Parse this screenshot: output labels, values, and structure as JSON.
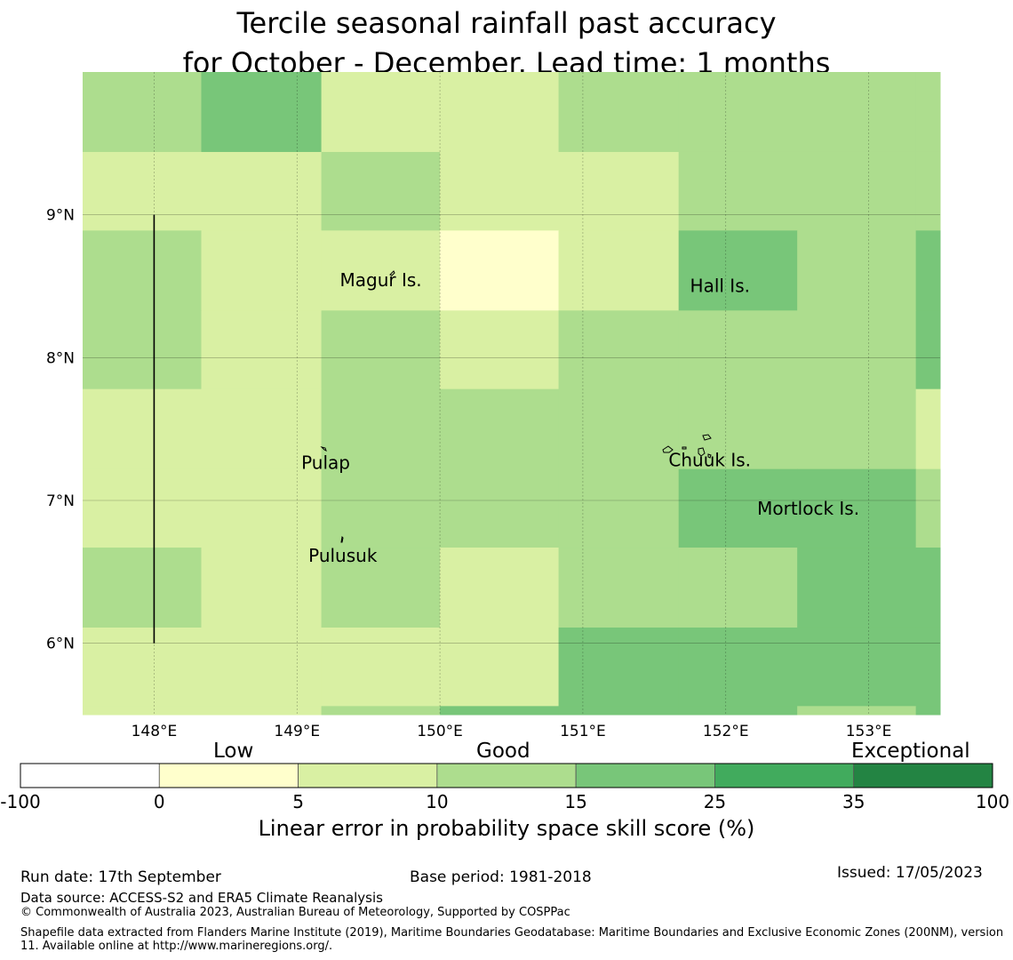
{
  "title": {
    "line1": "Tercile seasonal rainfall past accuracy",
    "line2": "for October - December. Lead time: 1 months"
  },
  "map": {
    "lon_range": [
      147.5,
      153.5
    ],
    "lat_range": [
      5.5,
      10.0
    ],
    "lon_ticks": [
      "148°E",
      "149°E",
      "150°E",
      "151°E",
      "152°E",
      "153°E"
    ],
    "lat_ticks": [
      "9°N",
      "8°N",
      "7°N",
      "6°N"
    ],
    "grid": true,
    "colors": [
      "#ffffff",
      "#ffffcc",
      "#d9f0a3",
      "#addd8e",
      "#78c679",
      "#41ab5d",
      "#238443"
    ],
    "cell_lon_edges": [
      147.5,
      148.33,
      149.17,
      150.0,
      150.83,
      151.67,
      152.5,
      153.33,
      153.5
    ],
    "cell_lat_edges": [
      10.0,
      9.44,
      8.89,
      8.33,
      7.78,
      7.22,
      6.67,
      6.11,
      5.56,
      5.5
    ],
    "cell_bins": [
      [
        3,
        4,
        2,
        2,
        3,
        3,
        3,
        3
      ],
      [
        2,
        2,
        3,
        2,
        2,
        3,
        3,
        3
      ],
      [
        3,
        2,
        2,
        1,
        2,
        4,
        3,
        4
      ],
      [
        3,
        2,
        3,
        2,
        3,
        3,
        3,
        4
      ],
      [
        2,
        2,
        3,
        3,
        3,
        3,
        3,
        2
      ],
      [
        2,
        2,
        3,
        3,
        3,
        4,
        4,
        3
      ],
      [
        3,
        2,
        3,
        2,
        3,
        3,
        4,
        4
      ],
      [
        2,
        2,
        2,
        2,
        4,
        4,
        4,
        4
      ],
      [
        2,
        2,
        3,
        4,
        4,
        4,
        3,
        4
      ]
    ],
    "boundary_line": {
      "lon": 148.0,
      "lat_from": 6.0,
      "lat_to": 9.0
    },
    "places": [
      {
        "name": "Magur Is.",
        "lon": 149.3,
        "lat": 8.5
      },
      {
        "name": "Hall Is.",
        "lon": 151.75,
        "lat": 8.46
      },
      {
        "name": "Pulap",
        "lon": 149.03,
        "lat": 7.22
      },
      {
        "name": "Chuuk Is.",
        "lon": 151.6,
        "lat": 7.24
      },
      {
        "name": "Mortlock Is.",
        "lon": 152.22,
        "lat": 6.9
      },
      {
        "name": "Pulusuk",
        "lon": 149.08,
        "lat": 6.57
      }
    ]
  },
  "legend": {
    "categories": [
      "Low",
      "Good",
      "Exceptional"
    ],
    "boundaries": [
      "-100",
      "0",
      "5",
      "10",
      "15",
      "25",
      "35",
      "100"
    ],
    "colorbar_title": "Linear error in probability space skill score (%)"
  },
  "footer": {
    "run_date": "Run date: 17th September",
    "base_period": "Base period: 1981-2018",
    "issued": "Issued: 17/05/2023",
    "data_source": "Data source: ACCESS-S2 and ERA5 Climate Reanalysis",
    "copyright": "© Commonwealth of Australia 2023, Australian Bureau of Meteorology, Supported by COSPPac",
    "shapefile_note": "Shapefile data extracted from Flanders Marine Institute (2019), Maritime Boundaries Geodatabase: Maritime Boundaries and Exclusive Economic Zones (200NM), version 11. Available online at http://www.marineregions.org/."
  }
}
